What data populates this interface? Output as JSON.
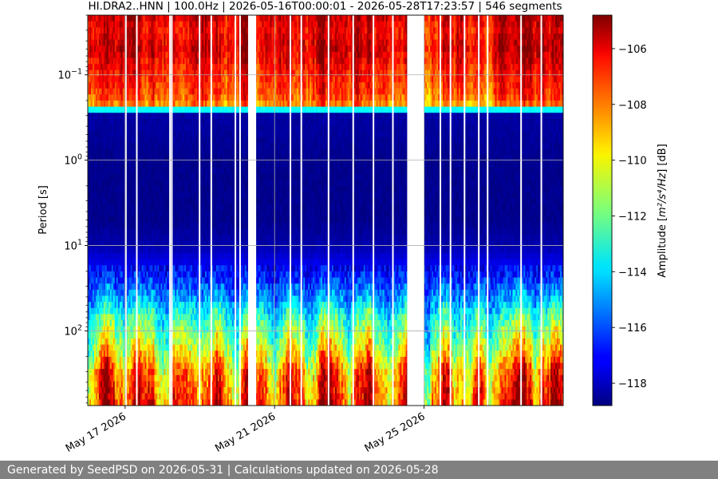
{
  "chart_data": {
    "type": "heatmap",
    "title": "HI.DRA2..HNN | 100.0Hz | 2026-05-16T00:00:01 - 2026-05-28T17:23:57 | 546 segments",
    "xlabel": "",
    "ylabel": "Period [s]",
    "y_scale": "log",
    "y_inverted": true,
    "ylim": [
      0.02,
      750
    ],
    "y_ticks": [
      {
        "value": 0.1,
        "base": "10",
        "exp": "−1"
      },
      {
        "value": 1,
        "base": "10",
        "exp": "0"
      },
      {
        "value": 10,
        "base": "10",
        "exp": "1"
      },
      {
        "value": 100,
        "base": "10",
        "exp": "2"
      }
    ],
    "xlim": [
      "2026-05-16T00:00:01",
      "2026-05-28T17:23:57"
    ],
    "x_ticks": [
      {
        "value": "2026-05-17",
        "label": "May 17 2026"
      },
      {
        "value": "2026-05-21",
        "label": "May 21 2026"
      },
      {
        "value": "2026-05-25",
        "label": "May 25 2026"
      }
    ],
    "grid": true,
    "data_gaps": [
      [
        "2026-05-20T07:00:00",
        "2026-05-20T12:10:00"
      ],
      [
        "2026-05-24T13:10:00",
        "2026-05-25T00:10:00"
      ]
    ],
    "segment_gaps": [
      "2026-05-17T00:30:00",
      "2026-05-17T07:30:00",
      "2026-05-18T04:50:00",
      "2026-05-18T06:00:00",
      "2026-05-18T23:50:00",
      "2026-05-19T07:20:00",
      "2026-05-19T22:50:00",
      "2026-05-20T01:50:00",
      "2026-05-21T10:10:00",
      "2026-05-21T17:10:00",
      "2026-05-22T10:40:00",
      "2026-05-23T02:30:00",
      "2026-05-23T15:30:00",
      "2026-05-24T04:00:00",
      "2026-05-25T10:30:00",
      "2026-05-25T17:00:00",
      "2026-05-26T02:00:00",
      "2026-05-26T11:10:00",
      "2026-05-26T16:50:00",
      "2026-05-27T14:20:00",
      "2026-05-28T03:20:00"
    ],
    "amplitude_profile": [
      {
        "period": 0.02,
        "amplitude": -106
      },
      {
        "period": 0.03,
        "amplitude": -106.5
      },
      {
        "period": 0.05,
        "amplitude": -106
      },
      {
        "period": 0.1,
        "amplitude": -107
      },
      {
        "period": 0.17,
        "amplitude": -107.5
      },
      {
        "period": 0.22,
        "amplitude": -108.5
      },
      {
        "period": 0.26,
        "amplitude": -114
      },
      {
        "period": 0.3,
        "amplitude": -118.3
      },
      {
        "period": 1,
        "amplitude": -118.6
      },
      {
        "period": 5,
        "amplitude": -118.6
      },
      {
        "period": 10,
        "amplitude": -118.2
      },
      {
        "period": 20,
        "amplitude": -117
      },
      {
        "period": 40,
        "amplitude": -115
      },
      {
        "period": 70,
        "amplitude": -113
      },
      {
        "period": 150,
        "amplitude": -111
      },
      {
        "period": 300,
        "amplitude": -108.5
      },
      {
        "period": 750,
        "amplitude": -107.5
      }
    ],
    "colorbar": {
      "label_main": "Amplitude [",
      "label_math": "m²/s⁴/Hz",
      "label_tail": "] [dB]",
      "min": -118.8,
      "max": -104.8,
      "ticks": [
        -106,
        -108,
        -110,
        -112,
        -114,
        -116,
        -118
      ],
      "colormap": "jet"
    }
  },
  "footer": {
    "text": "Generated by SeedPSD on 2026-05-31 | Calculations updated on 2026-05-28"
  }
}
